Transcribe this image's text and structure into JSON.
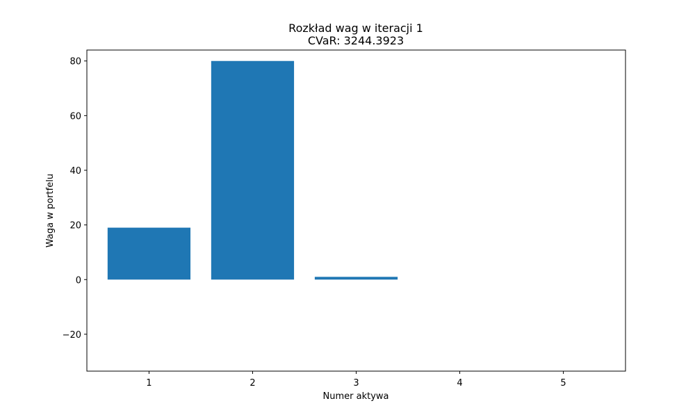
{
  "chart_data": {
    "type": "bar",
    "title": "Rozkład wag w iteracji 1",
    "subtitle": "CVaR: 3244.3923",
    "xlabel": "Numer aktywa",
    "ylabel": "Waga w portfelu",
    "categories": [
      "1",
      "2",
      "3",
      "4",
      "5"
    ],
    "values": [
      19,
      80,
      1,
      0,
      0
    ],
    "xlim": [
      0.4,
      5.6
    ],
    "ylim": [
      -33.5,
      84
    ],
    "yticks": [
      -20,
      0,
      20,
      40,
      60,
      80
    ],
    "ytick_labels": [
      "−20",
      "0",
      "20",
      "40",
      "60",
      "80"
    ],
    "bar_color": "#1f77b4",
    "grid": false,
    "legend": "none"
  }
}
